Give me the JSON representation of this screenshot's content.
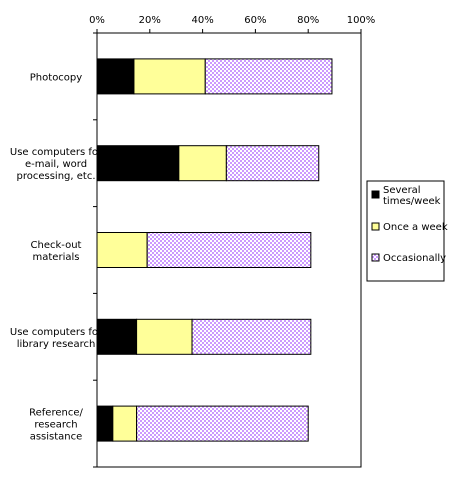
{
  "chart_data": {
    "type": "bar",
    "orientation": "horizontal",
    "stacked": true,
    "title": "",
    "xlabel": "",
    "ylabel": "",
    "xlim": [
      0,
      100
    ],
    "x_ticks": [
      "0%",
      "20%",
      "40%",
      "60%",
      "80%",
      "100%"
    ],
    "categories": [
      [
        "Photocopy"
      ],
      [
        "Use computers for",
        "e-mail, word",
        "processing, etc."
      ],
      [
        "Check-out",
        "materials"
      ],
      [
        "Use computers for",
        "library research"
      ],
      [
        "Reference/",
        "research",
        "assistance"
      ]
    ],
    "series": [
      {
        "name": [
          "Several",
          "times/week"
        ],
        "color": "#000000",
        "values": [
          14,
          31,
          0,
          15,
          6
        ]
      },
      {
        "name": [
          "Once a week"
        ],
        "color": "#ffff99",
        "values": [
          27,
          18,
          19,
          21,
          9
        ]
      },
      {
        "name": [
          "Occasionally"
        ],
        "color": "#cc99ff",
        "pattern": "checkered",
        "values": [
          48,
          35,
          62,
          45,
          65
        ]
      }
    ],
    "legend_position": "right",
    "grid": false
  }
}
